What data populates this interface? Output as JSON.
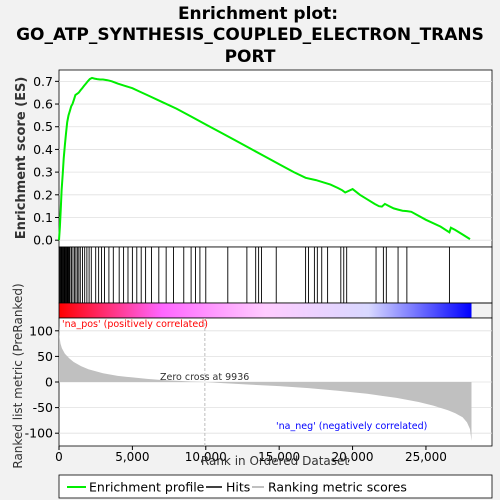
{
  "figure": {
    "title_lines": [
      "Enrichment plot:",
      "GO_ATP_SYNTHESIS_COUPLED_ELECTRON_TRANS",
      "PORT"
    ]
  },
  "legend": {
    "items": [
      {
        "label": "Enrichment profile",
        "color": "#00ee00"
      },
      {
        "label": "Hits",
        "color": "#000000"
      },
      {
        "label": "Ranking metric scores",
        "color": "#c0c0c0"
      }
    ]
  },
  "chart_data": [
    {
      "type": "line",
      "panel": "enrichment",
      "ylabel": "Enrichment score (ES)",
      "xlim": [
        0,
        29500
      ],
      "ylim": [
        -0.03,
        0.75
      ],
      "yticks": [
        0.0,
        0.1,
        0.2,
        0.3,
        0.4,
        0.5,
        0.6,
        0.7
      ],
      "ytick_labels": [
        "0.0",
        "0.1",
        "0.2",
        "0.3",
        "0.4",
        "0.5",
        "0.6",
        "0.7"
      ],
      "color": "#00ee00",
      "series": [
        {
          "x": [
            0,
            60,
            120,
            180,
            250,
            320,
            400,
            480,
            560,
            650,
            740,
            830,
            920,
            1020,
            1120,
            1230,
            1340,
            1460,
            1580,
            1700,
            1830,
            1960,
            2100,
            2250,
            2420,
            2600,
            2800,
            3000,
            3300,
            3600,
            4000,
            4500,
            5000,
            5500,
            6000,
            7000,
            8000,
            9000,
            10000,
            11000,
            12000,
            13000,
            14000,
            15000,
            16000,
            16800,
            17500,
            18000,
            18500,
            19000,
            19300,
            19500,
            20000,
            20500,
            21000,
            21500,
            21800,
            22000,
            22200,
            22500,
            22800,
            23100,
            23400,
            23700,
            24000,
            25000,
            26000,
            26600,
            26700,
            27000,
            27500,
            28000
          ],
          "y": [
            0.0,
            0.06,
            0.14,
            0.22,
            0.29,
            0.36,
            0.42,
            0.47,
            0.52,
            0.55,
            0.57,
            0.59,
            0.6,
            0.62,
            0.64,
            0.645,
            0.65,
            0.66,
            0.67,
            0.68,
            0.69,
            0.7,
            0.71,
            0.715,
            0.712,
            0.71,
            0.708,
            0.708,
            0.705,
            0.7,
            0.69,
            0.68,
            0.67,
            0.655,
            0.64,
            0.61,
            0.58,
            0.545,
            0.51,
            0.475,
            0.44,
            0.405,
            0.37,
            0.335,
            0.3,
            0.275,
            0.265,
            0.255,
            0.245,
            0.23,
            0.22,
            0.21,
            0.225,
            0.2,
            0.18,
            0.16,
            0.15,
            0.148,
            0.16,
            0.15,
            0.14,
            0.135,
            0.13,
            0.128,
            0.125,
            0.09,
            0.06,
            0.035,
            0.055,
            0.045,
            0.025,
            0.005
          ]
        }
      ]
    },
    {
      "type": "bar",
      "panel": "hits",
      "xlim": [
        0,
        29500
      ],
      "hits": [
        50,
        100,
        150,
        200,
        250,
        300,
        350,
        400,
        450,
        500,
        550,
        600,
        650,
        700,
        750,
        850,
        950,
        1050,
        1150,
        1250,
        1350,
        1450,
        1600,
        1750,
        1900,
        2050,
        2200,
        2500,
        2700,
        2900,
        3100,
        3400,
        3700,
        4100,
        4400,
        4700,
        5000,
        5300,
        5600,
        5900,
        6300,
        6800,
        7300,
        7800,
        8500,
        9000,
        9300,
        9600,
        10000,
        11500,
        12800,
        13400,
        13600,
        13800,
        14800,
        16800,
        17000,
        17400,
        17600,
        17900,
        18300,
        19200,
        19400,
        19600,
        21600,
        22100,
        22300,
        23100,
        23700,
        26600
      ],
      "color_bar": {
        "stops": [
          "#ff0000",
          "#ff66ff",
          "#ffccff",
          "#d8d8ff",
          "#0000ff"
        ],
        "zero_rank": 9936
      }
    },
    {
      "type": "area",
      "panel": "ranking",
      "ylabel": "Ranked list metric (PreRanked)",
      "xlabel": "Rank in Ordered Dataset",
      "xlim": [
        0,
        29500
      ],
      "ylim": [
        -125,
        125
      ],
      "xticks": [
        0,
        5000,
        10000,
        15000,
        20000,
        25000
      ],
      "xtick_labels": [
        "0",
        "5,000",
        "10,000",
        "15,000",
        "20,000",
        "25,000"
      ],
      "yticks": [
        100,
        50,
        0,
        -50,
        -100
      ],
      "ytick_labels": [
        "100",
        "50",
        "0",
        "-50",
        "-100"
      ],
      "color": "#c0c0c0",
      "series": [
        {
          "x": [
            0,
            30,
            100,
            200,
            400,
            700,
            1000,
            1500,
            2000,
            3000,
            4000,
            5000,
            6000,
            7000,
            8000,
            9000,
            9936,
            11000,
            13000,
            15000,
            17000,
            19000,
            21000,
            23000,
            24500,
            25500,
            26500,
            27000,
            27500,
            27800,
            28000,
            28100
          ],
          "y": [
            110,
            90,
            75,
            66,
            55,
            46,
            39,
            31,
            25,
            17,
            12,
            9,
            6,
            4,
            2.5,
            1,
            0,
            -2,
            -5,
            -8,
            -12,
            -17,
            -23,
            -31,
            -39,
            -46,
            -55,
            -61,
            -69,
            -79,
            -92,
            -115
          ]
        }
      ],
      "annotations": {
        "pos_label": "'na_pos' (positively correlated)",
        "neg_label": "'na_neg' (negatively correlated)",
        "zero_cross": "Zero cross at 9936",
        "pos_color": "#ff0000",
        "neg_color": "#0000ff"
      }
    }
  ]
}
